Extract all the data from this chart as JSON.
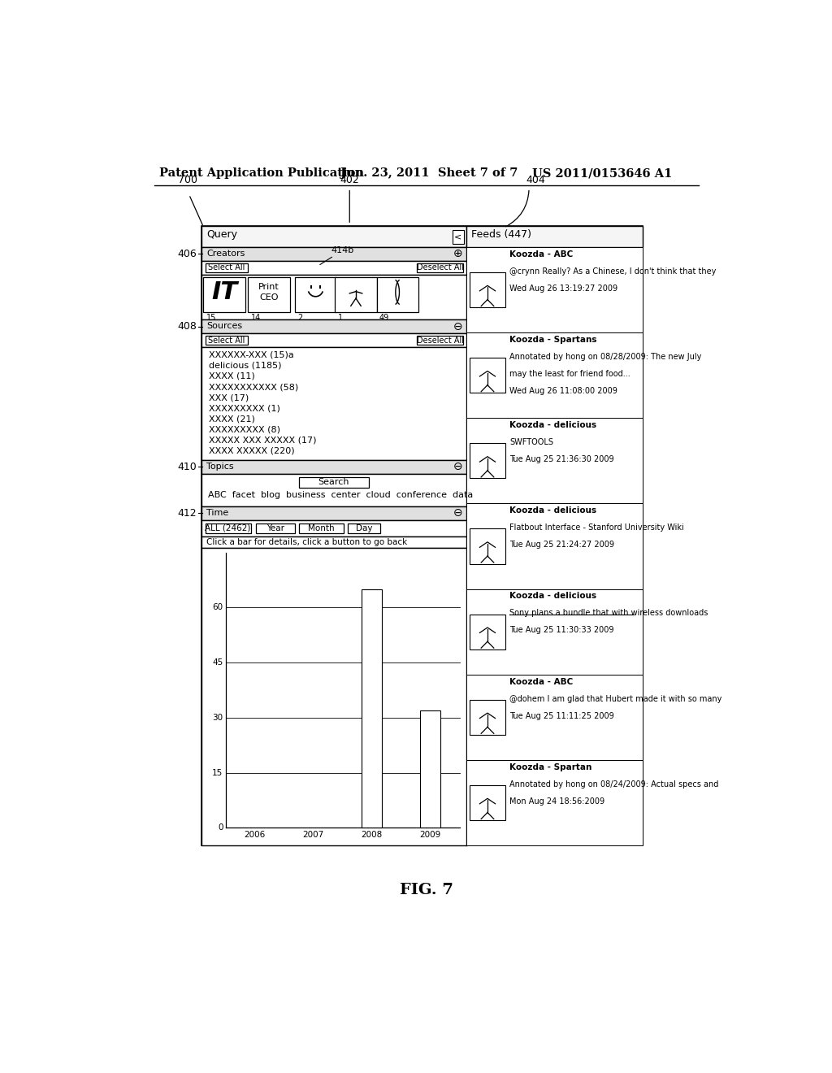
{
  "bg_color": "#ffffff",
  "header_left": "Patent Application Publication",
  "header_mid": "Jun. 23, 2011  Sheet 7 of 7",
  "header_right": "US 2011/0153646 A1",
  "fig_label": "FIG. 7",
  "label_700": "700",
  "label_402": "402",
  "label_404": "404",
  "label_406": "406",
  "label_408": "408",
  "label_410": "410",
  "label_412": "412",
  "label_414b": "414b",
  "query_row_text": "Query",
  "feeds_text": "Feeds (447)",
  "creators_text": "Creators",
  "sources_text": "Sources",
  "topics_text": "Topics",
  "time_text": "Time",
  "select_all": "Select All",
  "deselect_all": "Deselect All",
  "creator_icons_labels": [
    "15",
    "14",
    "2",
    "1",
    "49"
  ],
  "sources_list": [
    "XXXXXX-XXX (15)a",
    "delicious (1185)",
    "XXXX (11)",
    "XXXXXXXXXXX (58)",
    "XXX (17)",
    "XXXXXXXXX (1)",
    "XXXX (21)",
    "XXXXXXXXX (8)",
    "XXXXX XXX XXXXX (17)",
    "XXXX XXXXX (220)"
  ],
  "topics_search_btn": "Search",
  "topics_keywords": "ABC  facet  blog  business  center  cloud  conference  data",
  "time_buttons": [
    "ALL (2462)",
    "Year",
    "Month",
    "Day"
  ],
  "time_hint": "Click a bar for details, click a button to go back",
  "bar_years": [
    "2006",
    "2007",
    "2008",
    "2009"
  ],
  "bar_values": [
    0,
    0,
    65,
    32
  ],
  "bar_yticks": [
    0,
    15,
    30,
    45,
    60
  ],
  "feeds_items": [
    {
      "author": "Koozda - ABC",
      "line1": "@crynn Really? As a Chinese, I don't think that they",
      "line2": "",
      "date": "Wed Aug 26 13:19:27 2009",
      "underline": false
    },
    {
      "author": "Koozda - Spartans",
      "line1": "Annotated by hong on 08/28/2009: The new July",
      "line2": "may the least for friend food...",
      "date": "Wed Aug 26 11:08:00 2009",
      "underline": false
    },
    {
      "author": "Koozda - delicious",
      "line1": "SWFTOOLS",
      "line2": "",
      "date": "Tue Aug 25 21:36:30 2009",
      "underline": false
    },
    {
      "author": "Koozda - delicious",
      "line1": "Flatbout Interface - Stanford University Wiki",
      "line2": "",
      "date": "Tue Aug 25 21:24:27 2009",
      "underline": false
    },
    {
      "author": "Koozda - delicious",
      "line1": "Sony plans a bundle that with wireless downloads",
      "line2": "",
      "date": "Tue Aug 25 11:30:33 2009",
      "underline": true
    },
    {
      "author": "Koozda - ABC",
      "line1": "@dohem I am glad that Hubert made it with so many",
      "line2": "",
      "date": "Tue Aug 25 11:11:25 2009",
      "underline": false
    },
    {
      "author": "Koozda - Spartan",
      "line1": "Annotated by hong on 08/24/2009: Actual specs and",
      "line2": "",
      "date": "Mon Aug 24 18:56:2009",
      "underline": false
    }
  ]
}
